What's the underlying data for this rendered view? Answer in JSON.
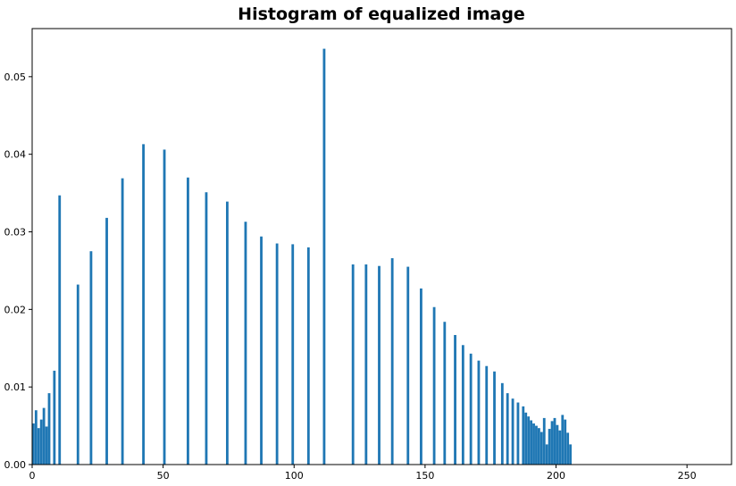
{
  "chart_data": {
    "type": "bar",
    "title": "Histogram of equalized image",
    "xlabel": "",
    "ylabel": "",
    "xlim": [
      0,
      267
    ],
    "ylim": [
      0,
      0.0562
    ],
    "bar_color": "#1f77b4",
    "grid": false,
    "x_ticks": [
      0,
      50,
      100,
      150,
      200,
      250
    ],
    "y_ticks": [
      0.0,
      0.01,
      0.02,
      0.03,
      0.04,
      0.05
    ],
    "x_tick_labels": [
      "0",
      "50",
      "100",
      "150",
      "200",
      "250"
    ],
    "y_tick_labels": [
      "0.00",
      "0.01",
      "0.02",
      "0.03",
      "0.04",
      "0.05"
    ],
    "x": [
      0,
      1,
      2,
      3,
      4,
      5,
      6,
      8,
      10,
      17,
      22,
      28,
      34,
      42,
      50,
      59,
      66,
      74,
      81,
      87,
      93,
      99,
      105,
      111,
      122,
      127,
      132,
      137,
      143,
      148,
      153,
      157,
      161,
      164,
      167,
      170,
      173,
      176,
      179,
      181,
      183,
      185,
      187,
      188,
      189,
      190,
      191,
      192,
      193,
      194,
      195,
      196,
      197,
      198,
      199,
      200,
      201,
      202,
      203,
      204,
      205
    ],
    "values": [
      0.0053,
      0.007,
      0.0047,
      0.0058,
      0.0073,
      0.0049,
      0.0092,
      0.0121,
      0.0347,
      0.0232,
      0.0275,
      0.0318,
      0.0369,
      0.0413,
      0.0406,
      0.037,
      0.0351,
      0.0339,
      0.0313,
      0.0294,
      0.0285,
      0.0284,
      0.028,
      0.0536,
      0.0258,
      0.0258,
      0.0256,
      0.0266,
      0.0255,
      0.0227,
      0.0203,
      0.0184,
      0.0167,
      0.0154,
      0.0143,
      0.0134,
      0.0127,
      0.012,
      0.0105,
      0.0092,
      0.0085,
      0.008,
      0.0075,
      0.0067,
      0.0062,
      0.0057,
      0.0053,
      0.005,
      0.0047,
      0.0042,
      0.006,
      0.0026,
      0.0046,
      0.0056,
      0.006,
      0.0051,
      0.0044,
      0.0064,
      0.0058,
      0.0041,
      0.0026
    ]
  }
}
